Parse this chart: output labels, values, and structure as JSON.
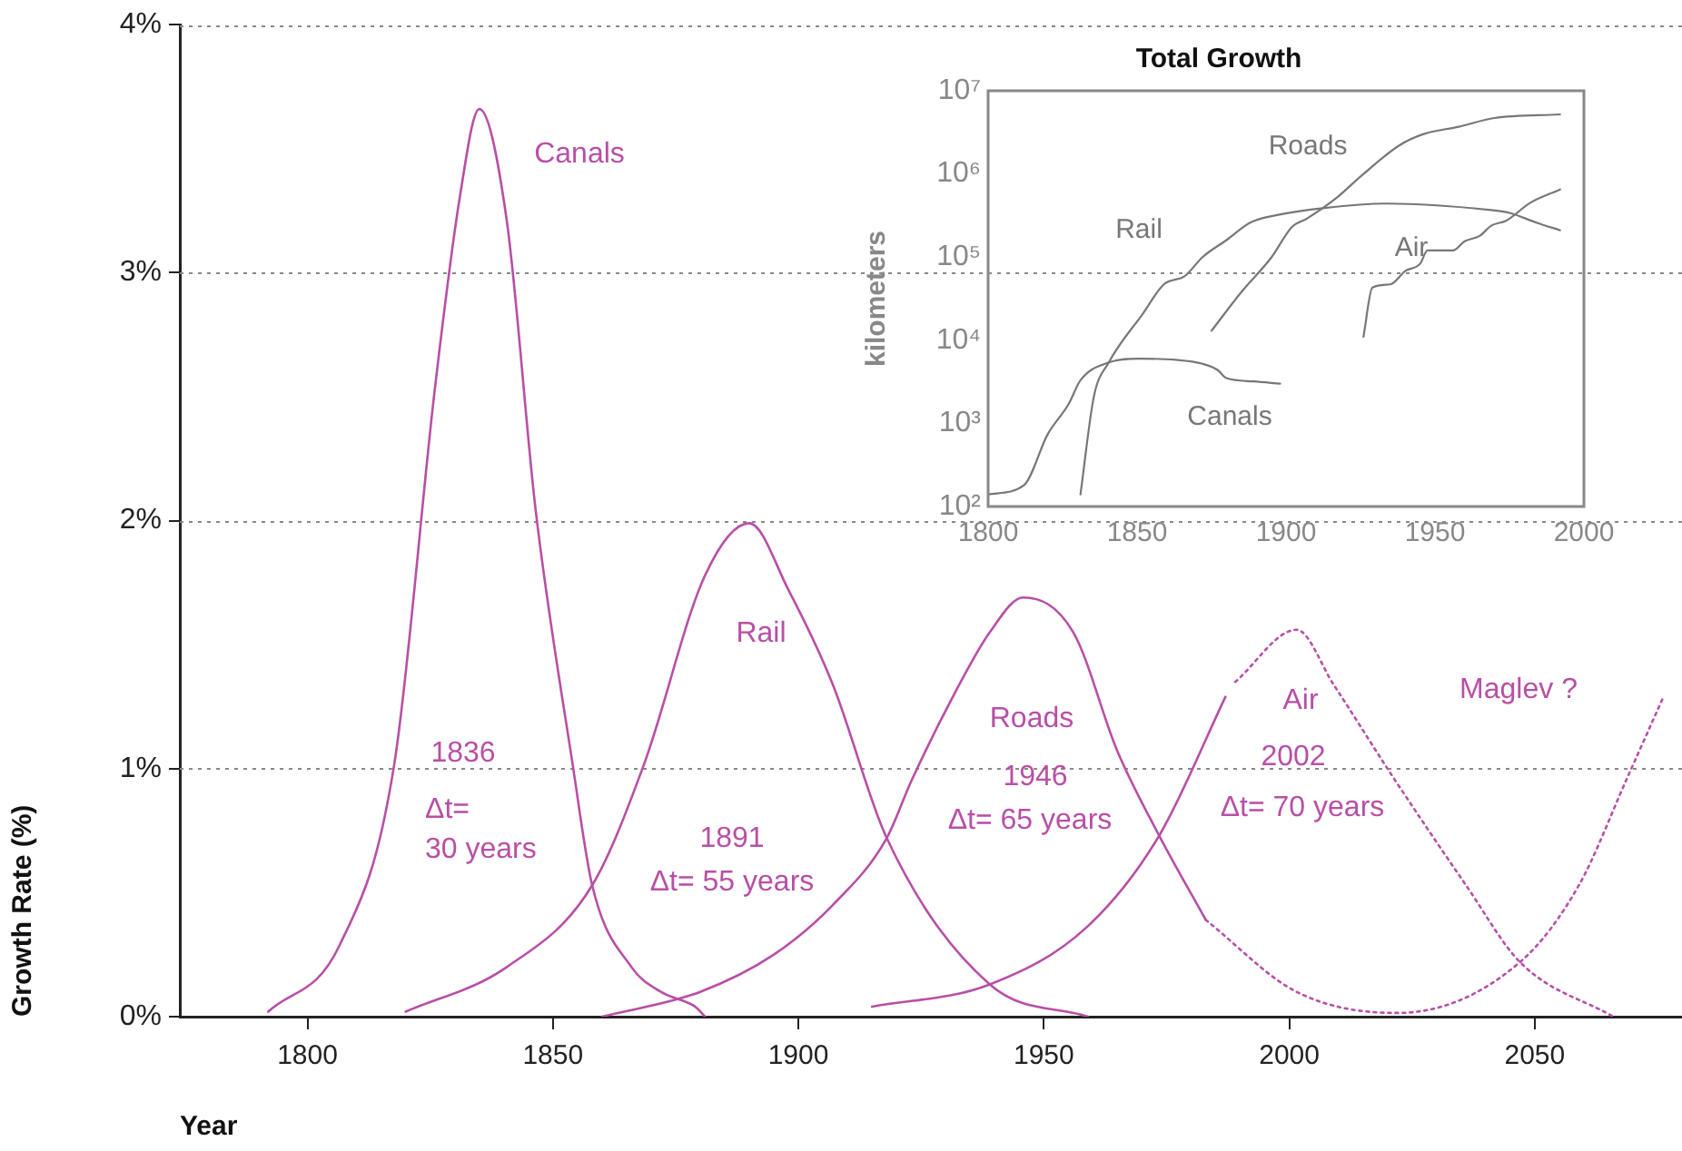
{
  "chart_data": [
    {
      "type": "line",
      "xlabel": "Year",
      "ylabel": "Growth Rate (%)",
      "xlim": [
        1774,
        2080
      ],
      "ylim": [
        0,
        4
      ],
      "xticks": [
        1800,
        1850,
        1900,
        1950,
        2000,
        2050
      ],
      "yticks": [
        {
          "value": 0,
          "label": "0%"
        },
        {
          "value": 1,
          "label": "1%"
        },
        {
          "value": 2,
          "label": "2%"
        },
        {
          "value": 3,
          "label": "3%"
        },
        {
          "value": 4,
          "label": "4%"
        }
      ],
      "grid": "y",
      "legend": false,
      "marker": "none",
      "series": [
        {
          "name": "Canals",
          "color": "#b84fa6",
          "line_style": "solid",
          "x": [
            1792,
            1806.6,
            1817.7,
            1826,
            1831,
            1835,
            1840.6,
            1846.5,
            1854,
            1858,
            1866,
            1872,
            1879,
            1881
          ],
          "values": [
            0.02,
            0.29,
            1.02,
            2.54,
            3.3,
            3.66,
            3.21,
            2.04,
            1.02,
            0.53,
            0.2,
            0.1,
            0.04,
            0
          ]
        },
        {
          "name": "Rail",
          "color": "#b84fa6",
          "line_style": "solid",
          "x": [
            1820,
            1840.6,
            1858,
            1868.6,
            1881,
            1890,
            1898,
            1907,
            1918,
            1939,
            1959
          ],
          "values": [
            0.02,
            0.2,
            0.53,
            1.02,
            1.78,
            1.99,
            1.72,
            1.34,
            0.72,
            0.13,
            0
          ]
        },
        {
          "name": "Roads",
          "color": "#b84fa6",
          "line_style": "solid",
          "x": [
            1860,
            1880,
            1895,
            1907,
            1918,
            1923,
            1932,
            1939,
            1945.8,
            1956,
            1965,
            1973.5,
            1983
          ],
          "values": [
            0,
            0.1,
            0.25,
            0.45,
            0.72,
            0.95,
            1.31,
            1.55,
            1.69,
            1.55,
            1.07,
            0.73,
            0.39
          ]
        },
        {
          "color": "#b84fa6",
          "line_style": "solid",
          "x": [
            1915,
            1939,
            1958.7,
            1973.5,
            1987
          ],
          "values": [
            0.04,
            0.13,
            0.36,
            0.73,
            1.29
          ]
        },
        {
          "name": "Air",
          "color": "#b84fa6",
          "line_style": "dotted",
          "x": [
            1989,
            2001.5,
            2009,
            2021,
            2036,
            2047,
            2066
          ],
          "values": [
            1.35,
            1.56,
            1.34,
            0.97,
            0.53,
            0.22,
            0
          ]
        },
        {
          "name": "Maglev ?",
          "color": "#b84fa6",
          "line_style": "dotted",
          "x": [
            1983,
            2001.5,
            2022,
            2047,
            2059,
            2069,
            2076
          ],
          "values": [
            0.39,
            0.1,
            0.015,
            0.22,
            0.53,
            0.97,
            1.28
          ]
        }
      ],
      "annotations": [
        "1836",
        "Δt=",
        "30 years",
        "1891",
        "Δt= 55 years",
        "1946",
        "Δt= 65 years",
        "2002",
        "Δt= 70 years"
      ]
    },
    {
      "type": "line",
      "title": "Total Growth",
      "ylabel": "kilometers",
      "log": true,
      "xlim": [
        1800,
        2000
      ],
      "ylim": [
        100,
        10000000
      ],
      "xticks": [
        1800,
        1850,
        1900,
        1950,
        2000
      ],
      "yticks": [
        {
          "value": 100,
          "label": "10²"
        },
        {
          "value": 1000,
          "label": "10³"
        },
        {
          "value": 10000,
          "label": "10⁴"
        },
        {
          "value": 100000,
          "label": "10⁵"
        },
        {
          "value": 1000000,
          "label": "10⁶"
        },
        {
          "value": 10000000,
          "label": "10⁷"
        }
      ],
      "grid": false,
      "legend": false,
      "marker": "none",
      "series": [
        {
          "name": "Canals",
          "color": "#777777",
          "x": [
            1800,
            1812,
            1820,
            1827,
            1831,
            1840.5,
            1851,
            1863,
            1872,
            1877,
            1880,
            1889,
            1898
          ],
          "values": [
            140,
            180,
            740,
            1700,
            3300,
            5400,
            6000,
            5800,
            5200,
            4400,
            3500,
            3200,
            3000
          ]
        },
        {
          "name": "Rail",
          "color": "#777777",
          "x": [
            1831,
            1835.5,
            1840.5,
            1852,
            1859,
            1866,
            1872,
            1880,
            1888,
            1897,
            1913,
            1934,
            1968,
            1975,
            1984,
            1992
          ],
          "values": [
            140,
            2100,
            5400,
            21000,
            47000,
            59000,
            100000,
            160000,
            260000,
            320000,
            390000,
            440000,
            370000,
            340000,
            260000,
            210000
          ]
        },
        {
          "name": "Roads",
          "color": "#777777",
          "x": [
            1875,
            1885,
            1895,
            1902,
            1907,
            1916.5,
            1926,
            1938,
            1946,
            1958,
            1970,
            1992
          ],
          "values": [
            13000,
            38000,
            98000,
            230000,
            290000,
            500000,
            1000000,
            2200000,
            3000000,
            3700000,
            4700000,
            5200000
          ]
        },
        {
          "name": "Air",
          "color": "#777777",
          "x": [
            1926,
            1929,
            1935,
            1940,
            1945,
            1947.5,
            1956,
            1960,
            1965,
            1969,
            1974,
            1982,
            1992
          ],
          "values": [
            11000,
            43000,
            47000,
            68000,
            83000,
            120000,
            120000,
            155000,
            180000,
            240000,
            275000,
            450000,
            650000
          ]
        }
      ]
    }
  ]
}
